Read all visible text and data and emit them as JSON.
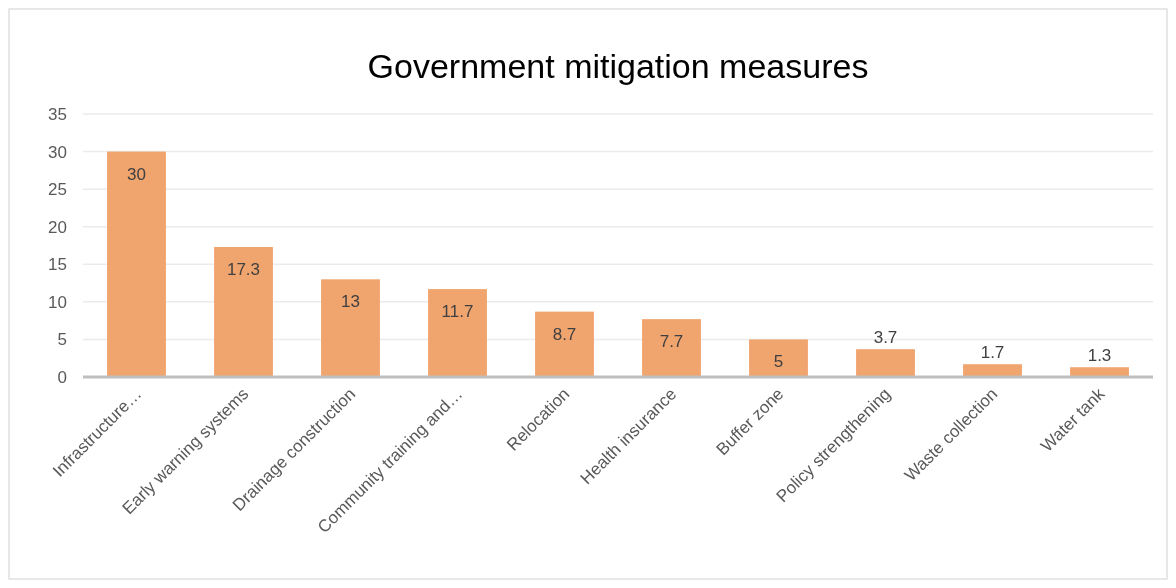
{
  "chart_data": {
    "type": "bar",
    "title": "Government mitigation measures",
    "categories": [
      "Infrastructure…",
      "Early warning systems",
      "Drainage construction",
      "Community training and…",
      "Relocation",
      "Health insurance",
      "Buffer zone",
      "Policy strengthening",
      "Waste collection",
      "Water tank"
    ],
    "values": [
      30,
      17.3,
      13,
      11.7,
      8.7,
      7.7,
      5,
      3.7,
      1.7,
      1.3
    ],
    "color": "#f0a46e",
    "ylim": [
      0,
      35
    ],
    "yticks": [
      0,
      5,
      10,
      15,
      20,
      25,
      30,
      35
    ],
    "grid": "y",
    "data_labels": true
  }
}
